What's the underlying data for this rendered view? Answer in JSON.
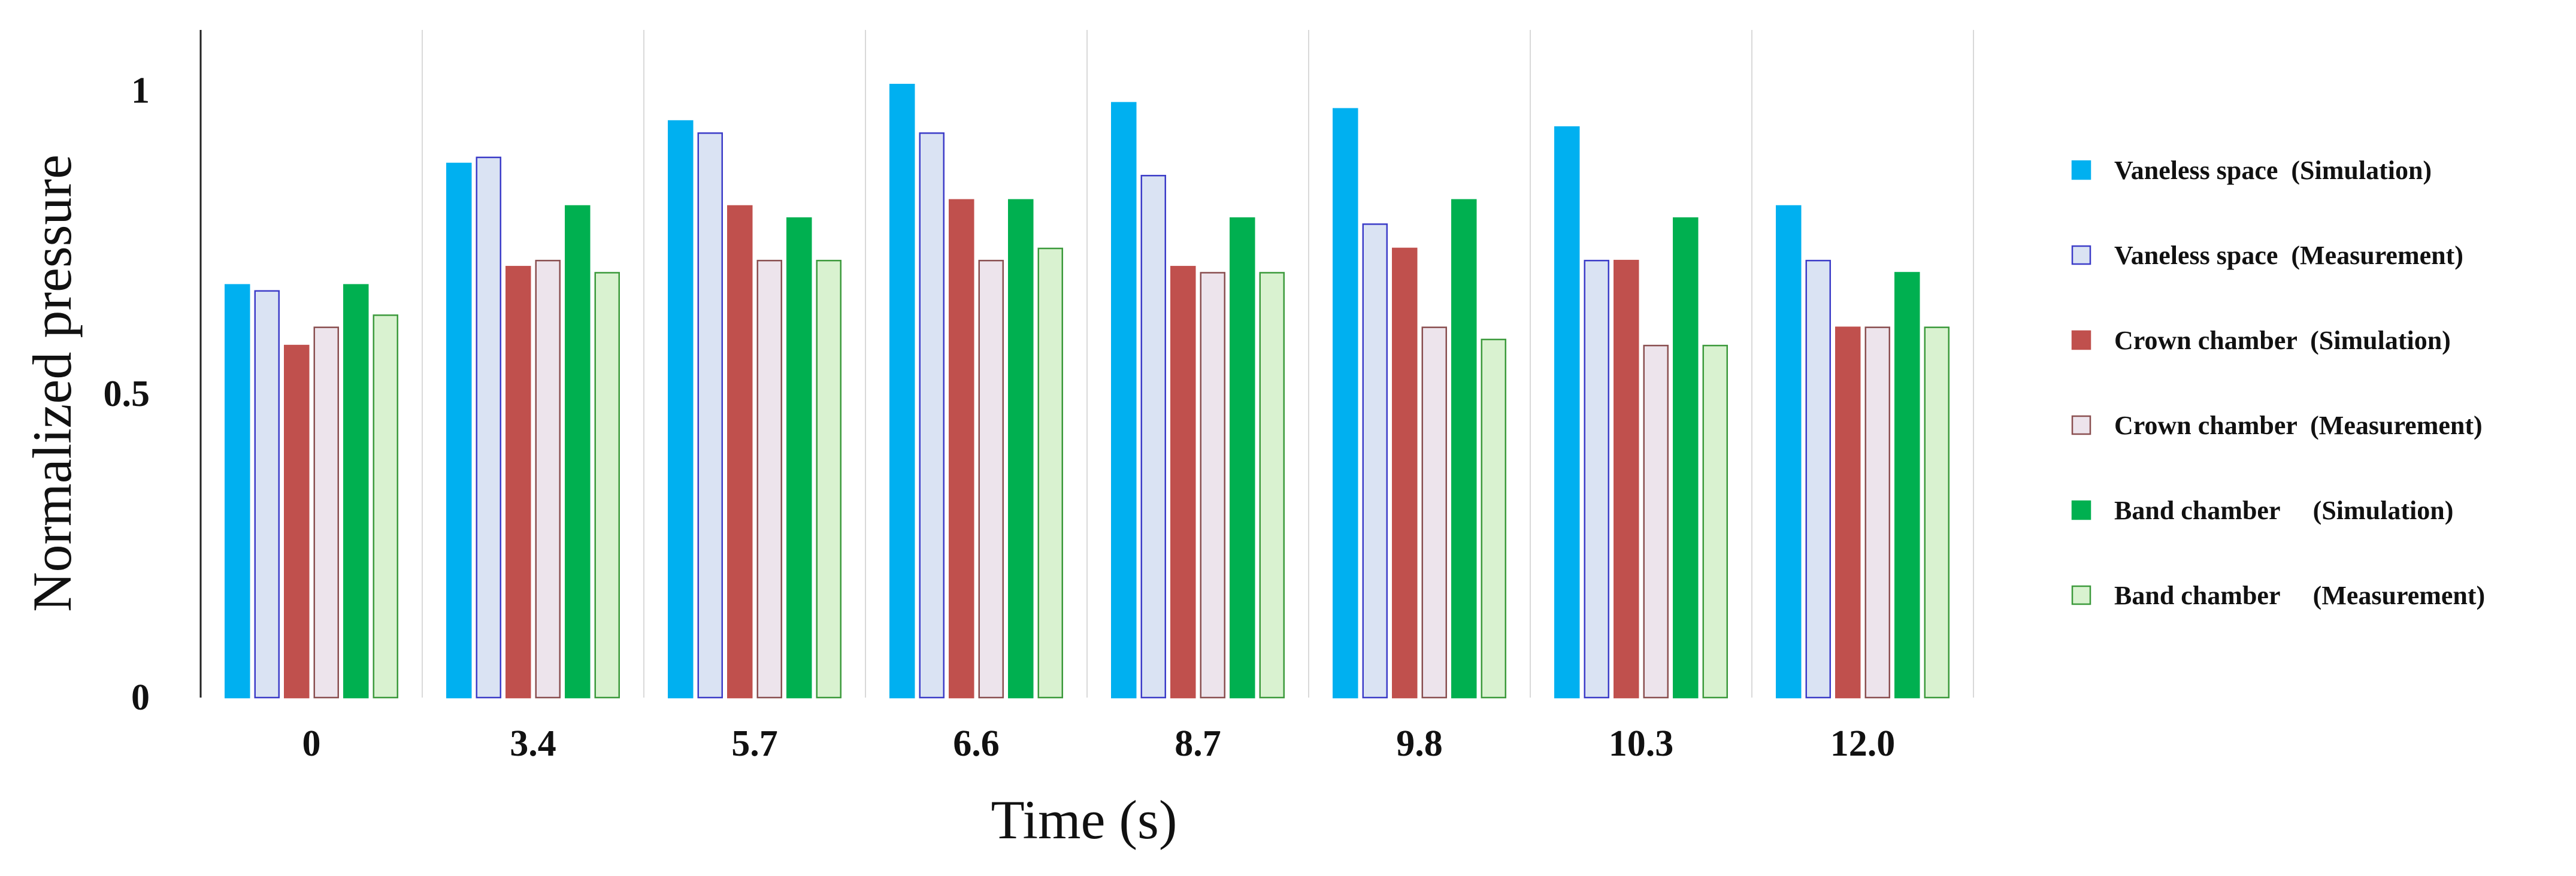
{
  "chart_data": {
    "type": "bar",
    "title": "",
    "xlabel": "Time (s)",
    "ylabel": "Normalized pressure",
    "ylim": [
      0,
      1.1
    ],
    "yticks": [
      {
        "value": 0,
        "label": "0"
      },
      {
        "value": 0.5,
        "label": "0.5"
      },
      {
        "value": 1,
        "label": "1"
      }
    ],
    "categories": [
      "0",
      "3.4",
      "5.7",
      "6.6",
      "8.7",
      "9.8",
      "10.3",
      "12.0"
    ],
    "grid": "vertical separators between categories",
    "legend_position": "right",
    "series": [
      {
        "name": "Vaneless space  (Simulation)",
        "fill": "#00B0F0",
        "stroke": "#00B0F0",
        "values": [
          0.68,
          0.88,
          0.95,
          1.01,
          0.98,
          0.97,
          0.94,
          0.81
        ]
      },
      {
        "name": "Vaneless space  (Measurement)",
        "fill": "#DAE3F3",
        "stroke": "#3C3CC8",
        "values": [
          0.67,
          0.89,
          0.93,
          0.93,
          0.86,
          0.78,
          0.72,
          0.72
        ]
      },
      {
        "name": "Crown chamber  (Simulation)",
        "fill": "#C0504D",
        "stroke": "#C0504D",
        "values": [
          0.58,
          0.71,
          0.81,
          0.82,
          0.71,
          0.74,
          0.72,
          0.61
        ]
      },
      {
        "name": "Crown chamber  (Measurement)",
        "fill": "#EDE4EC",
        "stroke": "#8A4F50",
        "values": [
          0.61,
          0.72,
          0.72,
          0.72,
          0.7,
          0.61,
          0.58,
          0.61
        ]
      },
      {
        "name": "Band chamber     (Simulation)",
        "fill": "#00B050",
        "stroke": "#00B050",
        "values": [
          0.68,
          0.81,
          0.79,
          0.82,
          0.79,
          0.82,
          0.79,
          0.7
        ]
      },
      {
        "name": "Band chamber     (Measurement)",
        "fill": "#D9F2D0",
        "stroke": "#3C9A3C",
        "values": [
          0.63,
          0.7,
          0.72,
          0.74,
          0.7,
          0.59,
          0.58,
          0.61
        ]
      }
    ]
  }
}
